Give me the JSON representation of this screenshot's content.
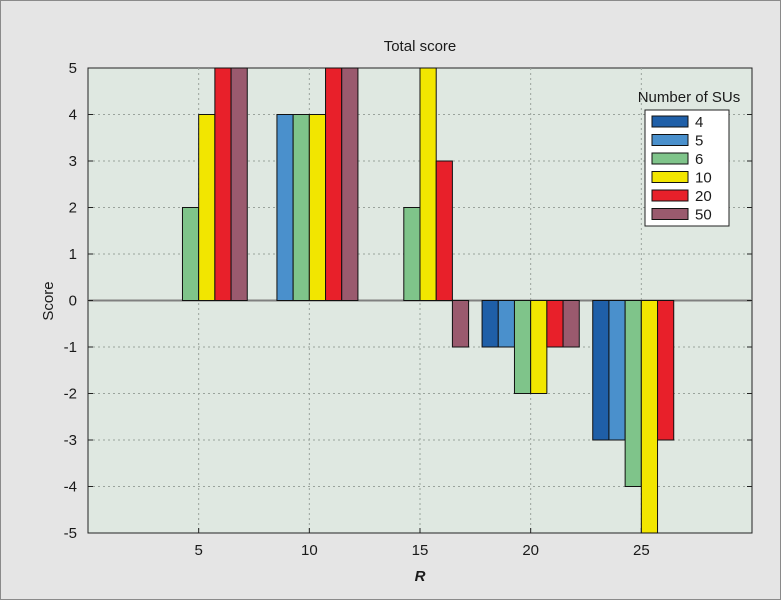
{
  "chart_data": {
    "type": "bar",
    "title": "Total score",
    "xlabel": "R",
    "ylabel": "Score",
    "categories": [
      "5",
      "10",
      "15",
      "20",
      "25"
    ],
    "yticks": [
      "5",
      "4",
      "3",
      "2",
      "1",
      "0",
      "-1",
      "-2",
      "-3",
      "-4",
      "-5"
    ],
    "ylim": [
      -5,
      5
    ],
    "grid": true,
    "legend_position": "top-right",
    "legend_title": "Number of SUs",
    "series": [
      {
        "name": "4",
        "color": "#1f5fa8",
        "values": [
          0,
          0,
          0,
          -1,
          -3
        ]
      },
      {
        "name": "5",
        "color": "#4a90cc",
        "values": [
          0,
          4,
          0,
          -1,
          -3
        ]
      },
      {
        "name": "6",
        "color": "#7fc48a",
        "values": [
          2,
          4,
          2,
          -2,
          -4
        ]
      },
      {
        "name": "10",
        "color": "#f2e600",
        "values": [
          4,
          4,
          5,
          -2,
          -5
        ]
      },
      {
        "name": "20",
        "color": "#e8202a",
        "values": [
          5,
          5,
          3,
          -1,
          -3
        ]
      },
      {
        "name": "50",
        "color": "#9a5a6e",
        "values": [
          5,
          5,
          -1,
          -1,
          0
        ]
      }
    ],
    "colors": {
      "plot_background": "#dfe8e1",
      "page_background": "#e5e5e5"
    }
  }
}
